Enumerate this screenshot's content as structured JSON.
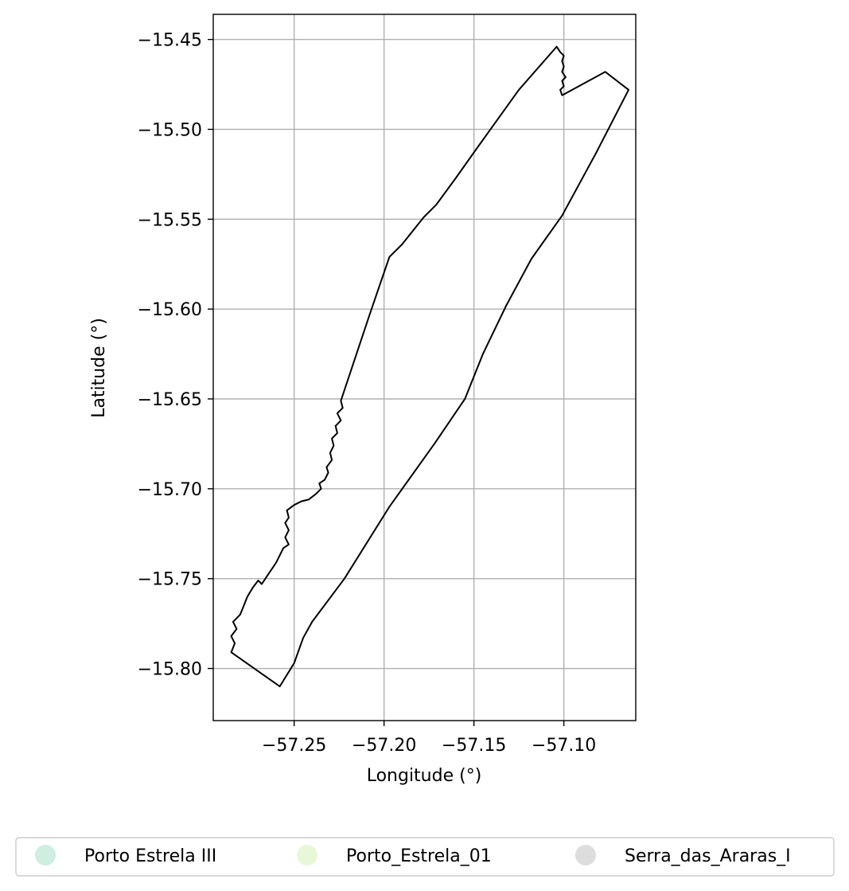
{
  "chart_data": {
    "type": "map",
    "xlabel": "Longitude (°)",
    "ylabel": "Latitude (°)",
    "xlim": [
      -57.295,
      -57.06
    ],
    "ylim": [
      -15.829,
      -15.436
    ],
    "x_ticks": [
      -57.25,
      -57.2,
      -57.15,
      -57.1
    ],
    "x_tick_labels": [
      "−57.25",
      "−57.20",
      "−57.15",
      "−57.10"
    ],
    "y_ticks": [
      -15.45,
      -15.5,
      -15.55,
      -15.6,
      -15.65,
      -15.7,
      -15.75,
      -15.8
    ],
    "y_tick_labels": [
      "−15.45",
      "−15.50",
      "−15.55",
      "−15.60",
      "−15.65",
      "−15.70",
      "−15.75",
      "−15.80"
    ],
    "grid": true,
    "legend_placement": "bottom-center",
    "legend": [
      {
        "name": "Porto Estrela III",
        "color": "#cdeee0"
      },
      {
        "name": "Porto_Estrela_01",
        "color": "#e9f7d9"
      },
      {
        "name": "Serra_das_Araras_I",
        "color": "#dddddd"
      }
    ],
    "boundary_color": "#000000",
    "boundary": [
      [
        -57.104,
        -15.454
      ],
      [
        -57.102,
        -15.457
      ],
      [
        -57.1,
        -15.459
      ],
      [
        -57.101,
        -15.462
      ],
      [
        -57.1,
        -15.465
      ],
      [
        -57.101,
        -15.468
      ],
      [
        -57.099,
        -15.471
      ],
      [
        -57.101,
        -15.473
      ],
      [
        -57.1,
        -15.476
      ],
      [
        -57.102,
        -15.478
      ],
      [
        -57.101,
        -15.481
      ],
      [
        -57.099,
        -15.48
      ],
      [
        -57.077,
        -15.468
      ],
      [
        -57.064,
        -15.478
      ],
      [
        -57.082,
        -15.513
      ],
      [
        -57.101,
        -15.548
      ],
      [
        -57.118,
        -15.572
      ],
      [
        -57.132,
        -15.598
      ],
      [
        -57.145,
        -15.625
      ],
      [
        -57.155,
        -15.65
      ],
      [
        -57.172,
        -15.675
      ],
      [
        -57.197,
        -15.71
      ],
      [
        -57.222,
        -15.75
      ],
      [
        -57.24,
        -15.774
      ],
      [
        -57.245,
        -15.783
      ],
      [
        -57.25,
        -15.797
      ],
      [
        -57.258,
        -15.81
      ],
      [
        -57.285,
        -15.791
      ],
      [
        -57.283,
        -15.786
      ],
      [
        -57.285,
        -15.782
      ],
      [
        -57.282,
        -15.778
      ],
      [
        -57.284,
        -15.774
      ],
      [
        -57.28,
        -15.77
      ],
      [
        -57.278,
        -15.765
      ],
      [
        -57.276,
        -15.76
      ],
      [
        -57.273,
        -15.755
      ],
      [
        -57.27,
        -15.751
      ],
      [
        -57.268,
        -15.753
      ],
      [
        -57.266,
        -15.75
      ],
      [
        -57.264,
        -15.747
      ],
      [
        -57.262,
        -15.744
      ],
      [
        -57.26,
        -15.741
      ],
      [
        -57.258,
        -15.737
      ],
      [
        -57.256,
        -15.733
      ],
      [
        -57.253,
        -15.731
      ],
      [
        -57.255,
        -15.727
      ],
      [
        -57.253,
        -15.723
      ],
      [
        -57.255,
        -15.719
      ],
      [
        -57.253,
        -15.716
      ],
      [
        -57.254,
        -15.712
      ],
      [
        -57.25,
        -15.709
      ],
      [
        -57.246,
        -15.707
      ],
      [
        -57.242,
        -15.706
      ],
      [
        -57.238,
        -15.703
      ],
      [
        -57.235,
        -15.7
      ],
      [
        -57.236,
        -15.697
      ],
      [
        -57.233,
        -15.695
      ],
      [
        -57.231,
        -15.691
      ],
      [
        -57.232,
        -15.688
      ],
      [
        -57.229,
        -15.684
      ],
      [
        -57.23,
        -15.68
      ],
      [
        -57.228,
        -15.676
      ],
      [
        -57.229,
        -15.672
      ],
      [
        -57.226,
        -15.669
      ],
      [
        -57.227,
        -15.665
      ],
      [
        -57.224,
        -15.662
      ],
      [
        -57.226,
        -15.658
      ],
      [
        -57.223,
        -15.655
      ],
      [
        -57.224,
        -15.651
      ],
      [
        -57.208,
        -15.603
      ],
      [
        -57.197,
        -15.571
      ],
      [
        -57.19,
        -15.564
      ],
      [
        -57.178,
        -15.549
      ],
      [
        -57.171,
        -15.542
      ],
      [
        -57.16,
        -15.527
      ],
      [
        -57.148,
        -15.51
      ],
      [
        -57.125,
        -15.478
      ],
      [
        -57.104,
        -15.454
      ]
    ]
  }
}
